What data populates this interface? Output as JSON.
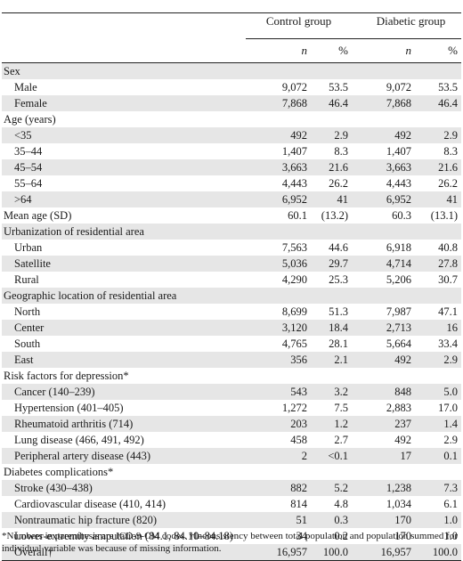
{
  "header": {
    "control_group": "Control group",
    "diabetic_group": "Diabetic group",
    "n_label": "n",
    "pct_label": "%"
  },
  "rows": [
    {
      "type": "section",
      "label": "Sex"
    },
    {
      "type": "item",
      "label": "Male",
      "cn": "9,072",
      "cp": "53.5",
      "dn": "9,072",
      "dp": "53.5"
    },
    {
      "type": "item",
      "label": "Female",
      "cn": "7,868",
      "cp": "46.4",
      "dn": "7,868",
      "dp": "46.4"
    },
    {
      "type": "section",
      "label": "Age (years)"
    },
    {
      "type": "item",
      "label": "<35",
      "cn": "492",
      "cp": "2.9",
      "dn": "492",
      "dp": "2.9"
    },
    {
      "type": "item",
      "label": "35–44",
      "cn": "1,407",
      "cp": "8.3",
      "dn": "1,407",
      "dp": "8.3"
    },
    {
      "type": "item",
      "label": "45–54",
      "cn": "3,663",
      "cp": "21.6",
      "dn": "3,663",
      "dp": "21.6"
    },
    {
      "type": "item",
      "label": "55–64",
      "cn": "4,443",
      "cp": "26.2",
      "dn": "4,443",
      "dp": "26.2"
    },
    {
      "type": "item",
      "label": ">64",
      "cn": "6,952",
      "cp": "41",
      "dn": "6,952",
      "dp": "41"
    },
    {
      "type": "section",
      "label": "Mean age (SD)",
      "cn": "60.1",
      "cp": "(13.2)",
      "dn": "60.3",
      "dp": "(13.1)"
    },
    {
      "type": "section",
      "label": "Urbanization of residential area"
    },
    {
      "type": "item",
      "label": "Urban",
      "cn": "7,563",
      "cp": "44.6",
      "dn": "6,918",
      "dp": "40.8"
    },
    {
      "type": "item",
      "label": "Satellite",
      "cn": "5,036",
      "cp": "29.7",
      "dn": "4,714",
      "dp": "27.8"
    },
    {
      "type": "item",
      "label": "Rural",
      "cn": "4,290",
      "cp": "25.3",
      "dn": "5,206",
      "dp": "30.7"
    },
    {
      "type": "section",
      "label": "Geographic location of residential area"
    },
    {
      "type": "item",
      "label": "North",
      "cn": "8,699",
      "cp": "51.3",
      "dn": "7,987",
      "dp": "47.1"
    },
    {
      "type": "item",
      "label": "Center",
      "cn": "3,120",
      "cp": "18.4",
      "dn": "2,713",
      "dp": "16"
    },
    {
      "type": "item",
      "label": "South",
      "cn": "4,765",
      "cp": "28.1",
      "dn": "5,664",
      "dp": "33.4"
    },
    {
      "type": "item",
      "label": "East",
      "cn": "356",
      "cp": "2.1",
      "dn": "492",
      "dp": "2.9"
    },
    {
      "type": "section",
      "label": "Risk factors for depression*"
    },
    {
      "type": "item",
      "label": "Cancer (140–239)",
      "cn": "543",
      "cp": "3.2",
      "dn": "848",
      "dp": "5.0"
    },
    {
      "type": "item",
      "label": "Hypertension (401–405)",
      "cn": "1,272",
      "cp": "7.5",
      "dn": "2,883",
      "dp": "17.0"
    },
    {
      "type": "item",
      "label": "Rheumatoid arthritis (714)",
      "cn": "203",
      "cp": "1.2",
      "dn": "237",
      "dp": "1.4"
    },
    {
      "type": "item",
      "label": "Lung disease (466, 491, 492)",
      "cn": "458",
      "cp": "2.7",
      "dn": "492",
      "dp": "2.9"
    },
    {
      "type": "item",
      "label": "Peripheral artery disease (443)",
      "cn": "2",
      "cp": "<0.1",
      "dn": "17",
      "dp": "0.1"
    },
    {
      "type": "section",
      "label": "Diabetes complications*"
    },
    {
      "type": "item",
      "label": "Stroke (430–438)",
      "cn": "882",
      "cp": "5.2",
      "dn": "1,238",
      "dp": "7.3"
    },
    {
      "type": "item",
      "label": "Cardiovascular disease (410, 414)",
      "cn": "814",
      "cp": "4.8",
      "dn": "1,034",
      "dp": "6.1"
    },
    {
      "type": "item",
      "label": "Nontraumatic hip fracture (820)",
      "cn": "51",
      "cp": "0.3",
      "dn": "170",
      "dp": "1.0"
    },
    {
      "type": "item",
      "label": "Lower-extremity amputation (84.1, 84.10–84.18)",
      "cn": "34",
      "cp": "0.2",
      "dn": "170",
      "dp": "1.0"
    },
    {
      "type": "item",
      "label": "Overall†",
      "cn": "16,957",
      "cp": "100.0",
      "dn": "16,957",
      "dp": "100.0"
    }
  ],
  "footnote": "*Numbers in parenthesis are ICD-9-CM codes. †Inconsistency between total population and population summed for individual variable was because of missing information."
}
